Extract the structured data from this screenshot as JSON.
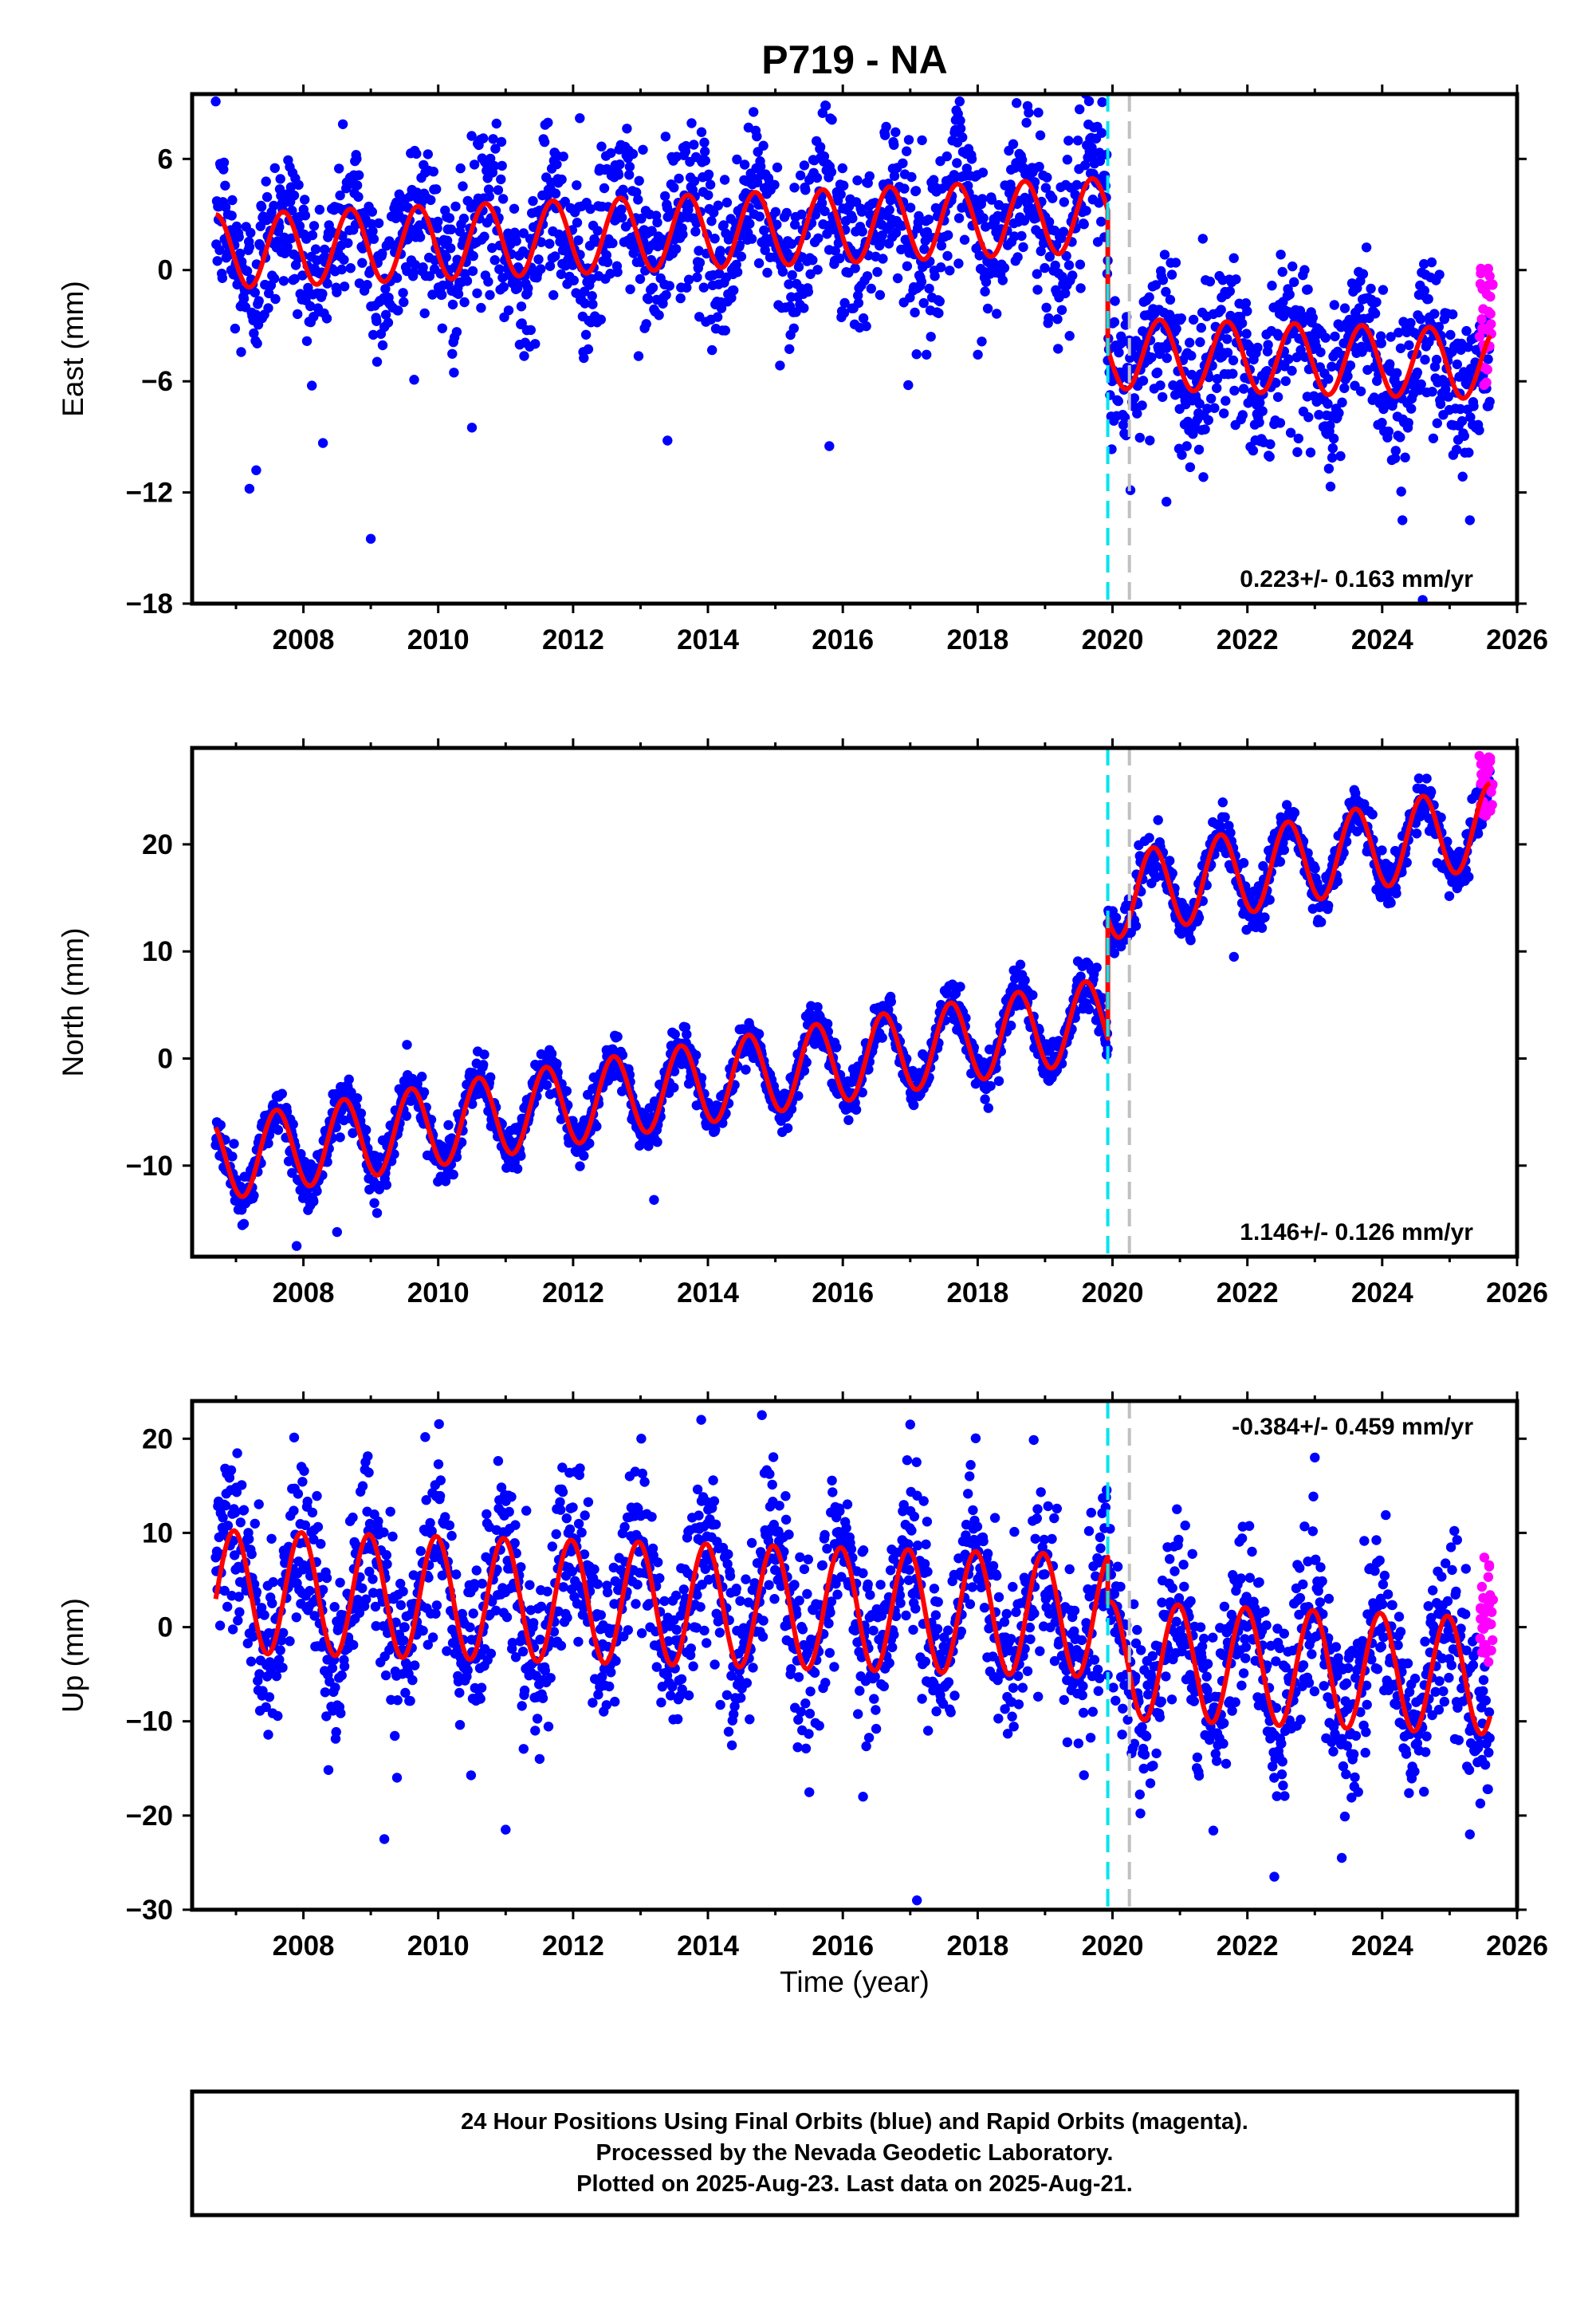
{
  "title": "P719 - NA",
  "colors": {
    "final_orbits": "#0000ff",
    "rapid_orbits": "#ff00ff",
    "model": "#ff0000",
    "equipment_change": "#00e5ee",
    "event": "#c0c0c0"
  },
  "xlabel": "Time (year)",
  "footer": {
    "line1": "24 Hour Positions Using Final Orbits (blue) and Rapid Orbits (magenta).",
    "line2": "Processed by the Nevada Geodetic Laboratory.",
    "line3": "Plotted on 2025-Aug-23. Last data on 2025-Aug-21."
  },
  "chart_data": [
    {
      "type": "scatter",
      "component": "east",
      "ylabel": "East (mm)",
      "rate_label": "0.223+/- 0.163 mm/yr",
      "xlim": [
        2006.35,
        2026.0
      ],
      "ylim": [
        -18,
        9.5
      ],
      "yticks": [
        6,
        0,
        -6,
        -12,
        -18
      ],
      "xticks": [
        2008,
        2010,
        2012,
        2014,
        2016,
        2018,
        2020,
        2022,
        2024,
        2026
      ],
      "vlines": [
        {
          "x": 2019.93,
          "style": "equipment_change"
        },
        {
          "x": 2020.25,
          "style": "event"
        }
      ],
      "segments": [
        {
          "start": 2006.7,
          "end": 2019.93,
          "offset": 1.0,
          "slope": 0.15,
          "amp": 2.0,
          "amp_trend": 0.0,
          "phase": 0.45,
          "noise": 2.2
        },
        {
          "start": 2019.93,
          "end": 2025.6,
          "offset": -4.5,
          "slope": -0.1,
          "amp": 1.9,
          "amp_trend": 0.0,
          "phase": 0.45,
          "noise": 2.2
        }
      ],
      "rapid": {
        "start": 2025.45,
        "end": 2025.64,
        "center": -3.0,
        "spread": 3.5,
        "count": 30
      },
      "outliers": [
        [
          2007.2,
          -11.8
        ],
        [
          2007.3,
          -10.8
        ],
        [
          2009.0,
          -14.5
        ],
        [
          2013.4,
          -9.2
        ],
        [
          2015.8,
          -9.5
        ],
        [
          2010.5,
          -8.5
        ],
        [
          2020.8,
          -12.5
        ],
        [
          2024.3,
          -13.5
        ],
        [
          2025.3,
          -13.5
        ],
        [
          2018.9,
          8.5
        ],
        [
          2012.1,
          8.2
        ],
        [
          2024.6,
          -17.8
        ]
      ],
      "series": [
        {
          "name": "Final Orbits (blue)",
          "style": "final_orbits"
        },
        {
          "name": "Rapid Orbits (magenta)",
          "style": "rapid_orbits"
        }
      ]
    },
    {
      "type": "scatter",
      "component": "north",
      "ylabel": "North (mm)",
      "rate_label": "1.146+/- 0.126 mm/yr",
      "xlim": [
        2006.35,
        2026.0
      ],
      "ylim": [
        -18.5,
        29
      ],
      "yticks": [
        20,
        10,
        0,
        -10
      ],
      "xticks": [
        2008,
        2010,
        2012,
        2014,
        2016,
        2018,
        2020,
        2022,
        2024,
        2026
      ],
      "vlines": [
        {
          "x": 2019.93,
          "style": "equipment_change"
        },
        {
          "x": 2020.25,
          "style": "event"
        }
      ],
      "segments": [
        {
          "start": 2006.7,
          "end": 2019.93,
          "offset": -9.5,
          "slope": 1.0,
          "amp": 3.8,
          "amp_trend": 0.0,
          "phase": 0.35,
          "noise": 1.1
        },
        {
          "start": 2019.93,
          "end": 2025.6,
          "offset": 15.0,
          "slope": 1.2,
          "amp": 3.9,
          "amp_trend": 0.0,
          "phase": 0.35,
          "noise": 1.1
        }
      ],
      "rapid": {
        "start": 2025.45,
        "end": 2025.64,
        "center": 25.5,
        "spread": 3.0,
        "count": 30
      },
      "outliers": [
        [
          2007.9,
          -17.5
        ],
        [
          2008.5,
          -16.2
        ],
        [
          2021.8,
          9.5
        ],
        [
          2013.2,
          -13.2
        ]
      ],
      "series": [
        {
          "name": "Final Orbits (blue)",
          "style": "final_orbits"
        },
        {
          "name": "Rapid Orbits (magenta)",
          "style": "rapid_orbits"
        }
      ]
    },
    {
      "type": "scatter",
      "component": "up",
      "ylabel": "Up (mm)",
      "rate_label": "-0.384+/- 0.459 mm/yr",
      "xlim": [
        2006.35,
        2026.0
      ],
      "ylim": [
        -30,
        24
      ],
      "yticks": [
        20,
        10,
        0,
        -10,
        -20,
        -30
      ],
      "xticks": [
        2008,
        2010,
        2012,
        2014,
        2016,
        2018,
        2020,
        2022,
        2024,
        2026
      ],
      "vlines": [
        {
          "x": 2019.93,
          "style": "equipment_change"
        },
        {
          "x": 2020.25,
          "style": "event"
        }
      ],
      "segments": [
        {
          "start": 2006.7,
          "end": 2019.93,
          "offset": 3.8,
          "slope": -0.2,
          "amp": 6.5,
          "amp_trend": 0.0,
          "phase": 0.72,
          "noise": 4.6
        },
        {
          "start": 2019.93,
          "end": 2025.6,
          "offset": -3.5,
          "slope": -0.3,
          "amp": 6.2,
          "amp_trend": 0.0,
          "phase": 0.72,
          "noise": 4.6
        }
      ],
      "rapid": {
        "start": 2025.45,
        "end": 2025.64,
        "center": 2.0,
        "spread": 6.0,
        "count": 30
      },
      "outliers": [
        [
          2009.2,
          -22.5
        ],
        [
          2011.0,
          -21.5
        ],
        [
          2017.1,
          -29.0
        ],
        [
          2022.4,
          -26.5
        ],
        [
          2023.4,
          -24.5
        ],
        [
          2025.3,
          -22.0
        ],
        [
          2014.8,
          22.5
        ],
        [
          2013.9,
          22.0
        ],
        [
          2017.0,
          21.5
        ],
        [
          2023.0,
          18.0
        ],
        [
          2016.3,
          -18.0
        ]
      ],
      "series": [
        {
          "name": "Final Orbits (blue)",
          "style": "final_orbits"
        },
        {
          "name": "Rapid Orbits (magenta)",
          "style": "rapid_orbits"
        }
      ]
    }
  ]
}
